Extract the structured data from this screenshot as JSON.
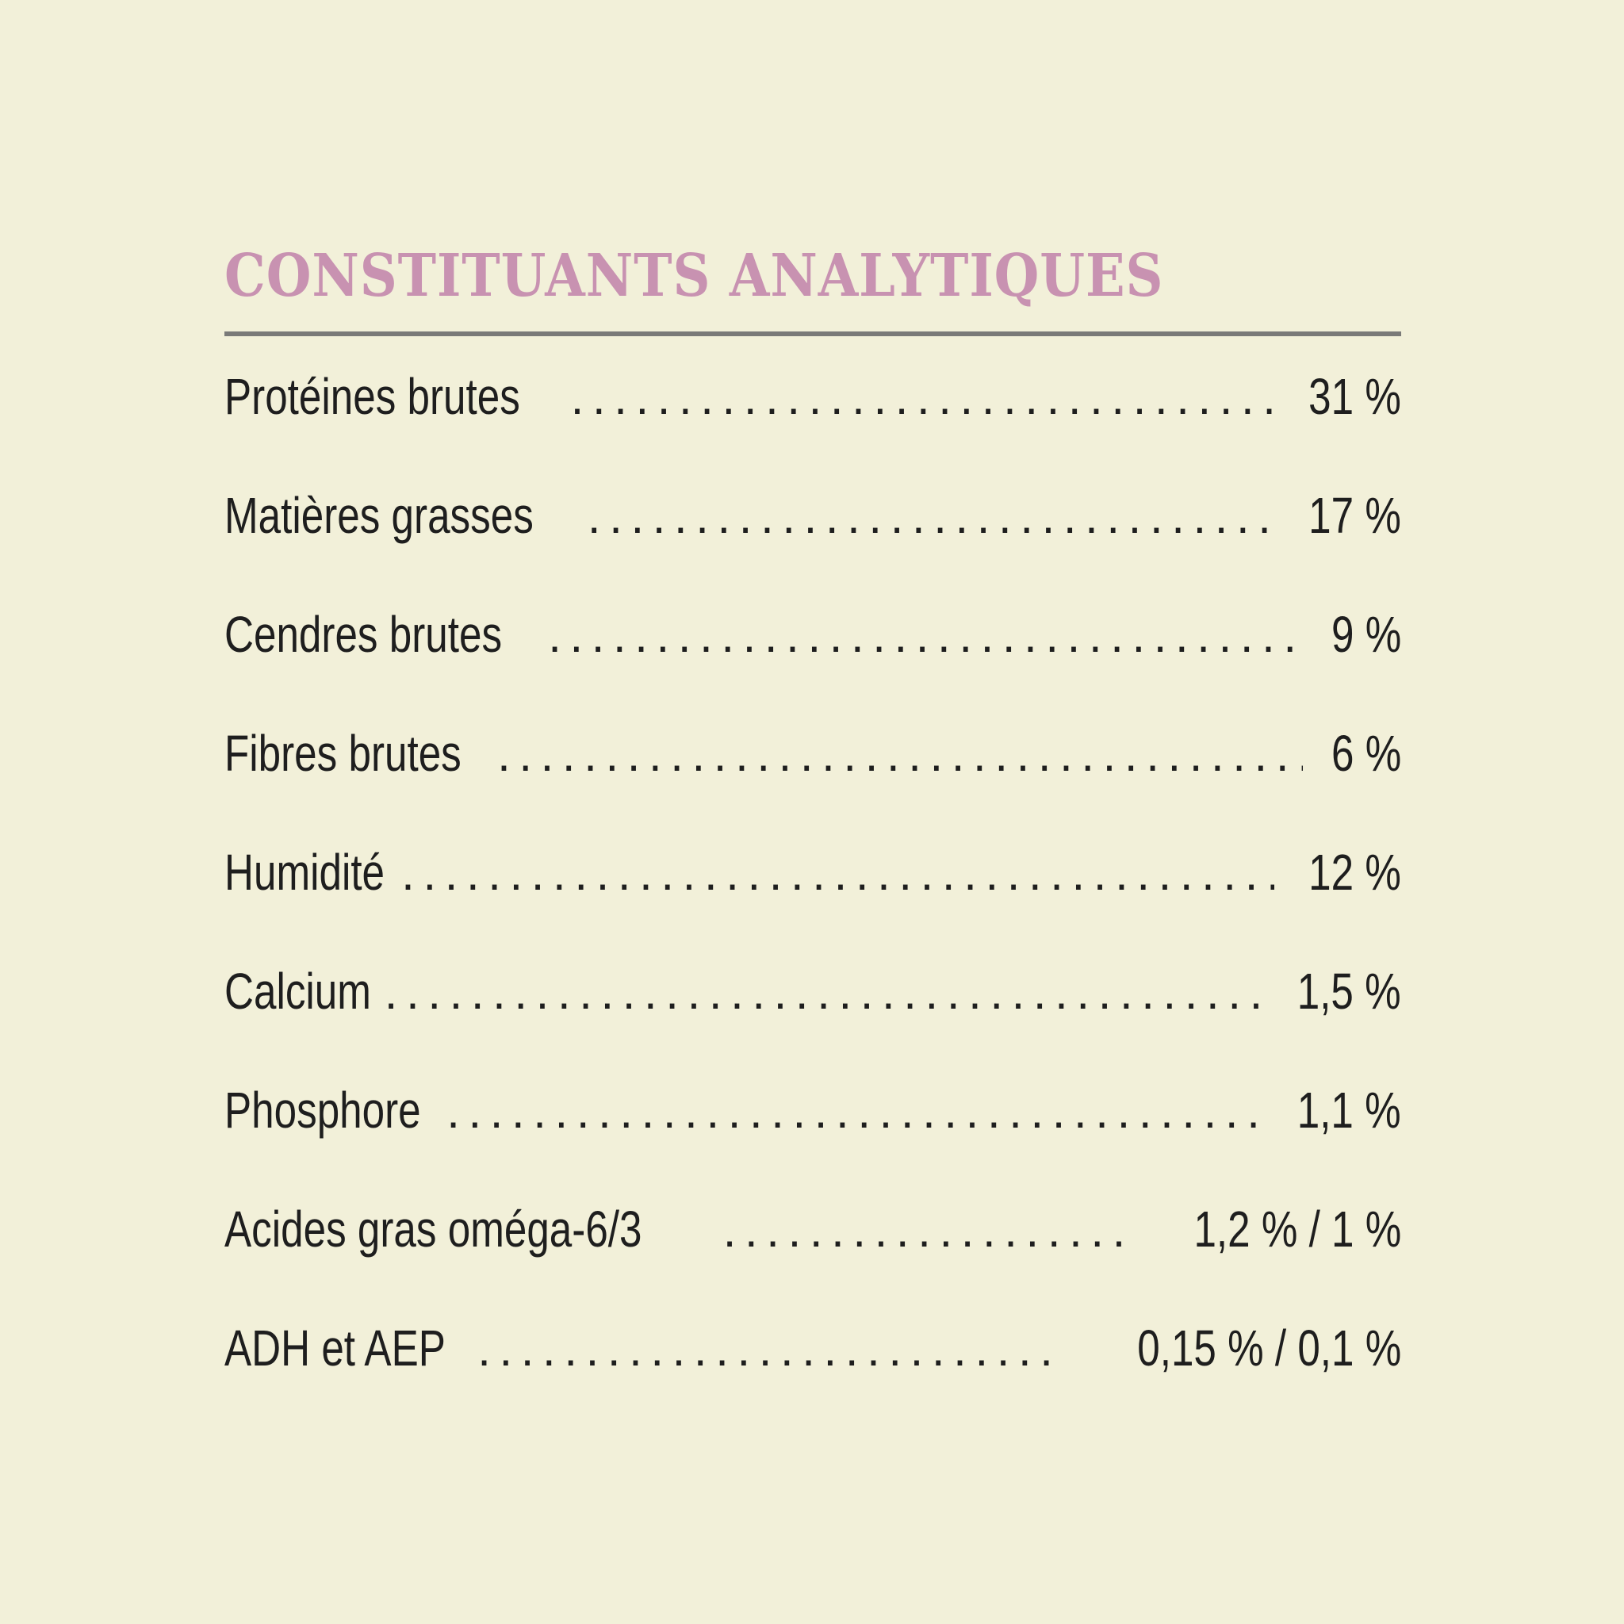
{
  "colors": {
    "background": "#f2f0d9",
    "title": "#c892b1",
    "rule": "#7a7a78",
    "text": "#1e1e1e"
  },
  "title": "CONSTITUANTS ANALYTIQUES",
  "rows": [
    {
      "label": "Protéines brutes",
      "value": "31 %"
    },
    {
      "label": "Matières grasses",
      "value": "17 %"
    },
    {
      "label": "Cendres brutes",
      "value": "9 %"
    },
    {
      "label": "Fibres brutes",
      "value": "6 %"
    },
    {
      "label": "Humidité",
      "value": "12 %"
    },
    {
      "label": "Calcium",
      "value": "1,5 %"
    },
    {
      "label": "Phosphore",
      "value": "1,1 %"
    },
    {
      "label": "Acides gras oméga-6/3",
      "value": "1,2 % / 1 %"
    },
    {
      "label": "ADH et AEP",
      "value": "0,15 % / 0,1 %"
    }
  ]
}
